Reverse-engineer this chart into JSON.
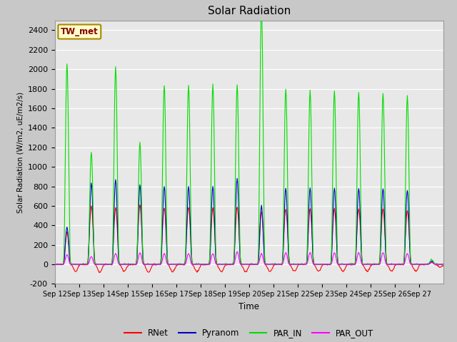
{
  "title": "Solar Radiation",
  "ylabel": "Solar Radiation (W/m2, uE/m2/s)",
  "xlabel": "Time",
  "ylim": [
    -200,
    2500
  ],
  "yticks": [
    -200,
    0,
    200,
    400,
    600,
    800,
    1000,
    1200,
    1400,
    1600,
    1800,
    2000,
    2200,
    2400
  ],
  "station_label": "TW_met",
  "colors": {
    "RNet": "#ff0000",
    "Pyranom": "#0000cc",
    "PAR_IN": "#00dd00",
    "PAR_OUT": "#ff00ff"
  },
  "linewidth": 0.8,
  "fig_bg_color": "#c8c8c8",
  "plot_bg_color": "#e8e8e8",
  "x_labels": [
    "Sep 12",
    "Sep 13",
    "Sep 14",
    "Sep 15",
    "Sep 16",
    "Sep 17",
    "Sep 18",
    "Sep 19",
    "Sep 20",
    "Sep 21",
    "Sep 22",
    "Sep 23",
    "Sep 24",
    "Sep 25",
    "Sep 26",
    "Sep 27"
  ],
  "par_in_peaks": [
    2050,
    1150,
    2030,
    1250,
    1840,
    1840,
    1840,
    1840,
    2650,
    1800,
    1780,
    1780,
    1760,
    1750,
    1720,
    50
  ],
  "pyranom_peaks": [
    380,
    830,
    870,
    810,
    800,
    800,
    800,
    880,
    600,
    780,
    780,
    780,
    780,
    780,
    760,
    30
  ],
  "rnet_peaks": [
    330,
    600,
    580,
    610,
    580,
    590,
    580,
    590,
    540,
    570,
    570,
    570,
    570,
    570,
    550,
    20
  ],
  "par_out_peaks": [
    100,
    80,
    110,
    120,
    110,
    110,
    110,
    130,
    110,
    120,
    120,
    120,
    120,
    120,
    110,
    20
  ],
  "rnet_night": [
    -70,
    -80,
    -70,
    -80,
    -75,
    -75,
    -75,
    -75,
    -75,
    -70,
    -70,
    -70,
    -70,
    -70,
    -70,
    -30
  ]
}
